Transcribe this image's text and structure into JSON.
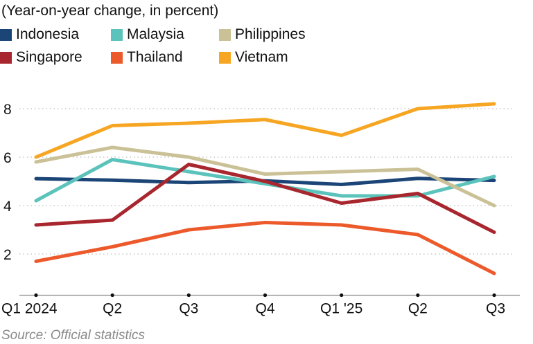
{
  "chart_data": {
    "type": "line",
    "subtitle": "(Year-on-year change, in percent)",
    "categories": [
      "Q1 2024",
      "Q2",
      "Q3",
      "Q4",
      "Q1 '25",
      "Q2",
      "Q3"
    ],
    "yticks": [
      2,
      4,
      6,
      8
    ],
    "ylim": [
      0.3,
      8.6
    ],
    "grid": "horizontal dotted",
    "legend_position": "top",
    "series": [
      {
        "name": "Indonesia",
        "color": "#1c4577",
        "values": [
          5.11,
          5.05,
          4.95,
          5.02,
          4.87,
          5.12,
          5.04
        ]
      },
      {
        "name": "Malaysia",
        "color": "#5bc3bb",
        "values": [
          4.2,
          5.9,
          5.4,
          4.9,
          4.4,
          4.4,
          5.2
        ]
      },
      {
        "name": "Philippines",
        "color": "#cbc197",
        "values": [
          5.8,
          6.4,
          6.0,
          5.3,
          5.4,
          5.5,
          4.0
        ]
      },
      {
        "name": "Singapore",
        "color": "#a8262e",
        "values": [
          3.2,
          3.4,
          5.7,
          5.0,
          4.1,
          4.5,
          2.9
        ]
      },
      {
        "name": "Thailand",
        "color": "#ec5a2c",
        "values": [
          1.7,
          2.3,
          3.0,
          3.3,
          3.2,
          2.8,
          1.2
        ]
      },
      {
        "name": "Vietnam",
        "color": "#f6a623",
        "values": [
          6.0,
          7.3,
          7.4,
          7.55,
          6.9,
          8.0,
          8.2
        ]
      }
    ],
    "source": "Source: Official statistics"
  }
}
